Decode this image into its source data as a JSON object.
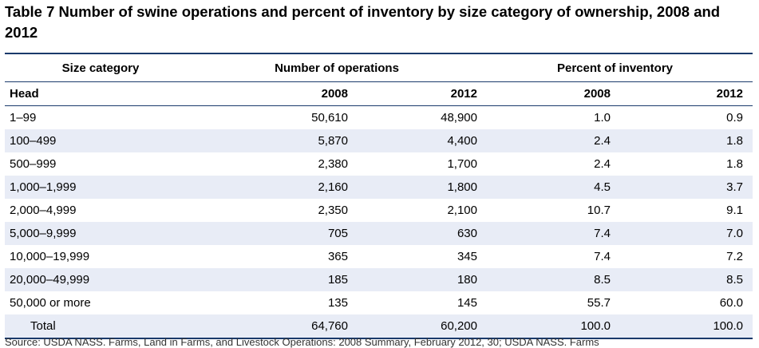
{
  "title": "Table 7  Number of swine operations and percent of inventory by size category of ownership, 2008 and 2012",
  "headers": {
    "size_category": "Size category",
    "number_of_operations": "Number of operations",
    "percent_of_inventory": "Percent of inventory",
    "head": "Head",
    "ops_2008": "2008",
    "ops_2012": "2012",
    "pct_2008": "2008",
    "pct_2012": "2012"
  },
  "rows": [
    {
      "size": "1–99",
      "ops2008": "50,610",
      "ops2012": "48,900",
      "pct2008": "1.0",
      "pct2012": "0.9"
    },
    {
      "size": "100–499",
      "ops2008": "5,870",
      "ops2012": "4,400",
      "pct2008": "2.4",
      "pct2012": "1.8"
    },
    {
      "size": "500–999",
      "ops2008": "2,380",
      "ops2012": "1,700",
      "pct2008": "2.4",
      "pct2012": "1.8"
    },
    {
      "size": "1,000–1,999",
      "ops2008": "2,160",
      "ops2012": "1,800",
      "pct2008": "4.5",
      "pct2012": "3.7"
    },
    {
      "size": "2,000–4,999",
      "ops2008": "2,350",
      "ops2012": "2,100",
      "pct2008": "10.7",
      "pct2012": "9.1"
    },
    {
      "size": "5,000–9,999",
      "ops2008": "705",
      "ops2012": "630",
      "pct2008": "7.4",
      "pct2012": "7.0"
    },
    {
      "size": "10,000–19,999",
      "ops2008": "365",
      "ops2012": "345",
      "pct2008": "7.4",
      "pct2012": "7.2"
    },
    {
      "size": "20,000–49,999",
      "ops2008": "185",
      "ops2012": "180",
      "pct2008": "8.5",
      "pct2012": "8.5"
    },
    {
      "size": "50,000 or more",
      "ops2008": "135",
      "ops2012": "145",
      "pct2008": "55.7",
      "pct2012": "60.0"
    }
  ],
  "total": {
    "size": "Total",
    "ops2008": "64,760",
    "ops2012": "60,200",
    "pct2008": "100.0",
    "pct2012": "100.0"
  },
  "source": "Source: USDA NASS. Farms, Land in Farms, and Livestock Operations: 2008 Summary, February 2012, 30; USDA NASS. Farms"
}
